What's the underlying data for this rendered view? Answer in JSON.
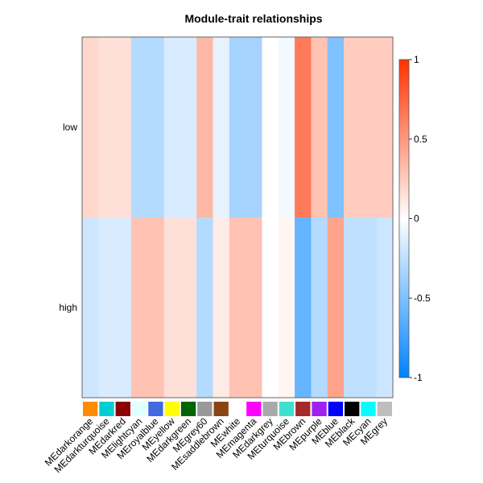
{
  "chart_data": {
    "type": "heatmap",
    "title": "Module-trait relationships",
    "rows": [
      "low",
      "high"
    ],
    "columns": [
      "MEdarkorange",
      "MEdarkturquoise",
      "MEdarkred",
      "MElightcyan",
      "MEroyalblue",
      "MEyellow",
      "MEdarkgreen",
      "MEgrey60",
      "MEsaddlebrown",
      "MEwhite",
      "MEmagenta",
      "MEdarkgrey",
      "MEturquoise",
      "MEbrown",
      "MEpurple",
      "MEblue",
      "MEblack",
      "MEcyan",
      "MEgrey"
    ],
    "module_colors": [
      "#FF8C00",
      "#00CED1",
      "#8B0000",
      "#E0FFFF",
      "#4169E1",
      "#FFFF00",
      "#006400",
      "#999999",
      "#8B4513",
      "#FFFFFF",
      "#FF00FF",
      "#A9A9A9",
      "#40E0D0",
      "#A52A2A",
      "#A020F0",
      "#0000FF",
      "#000000",
      "#00FFFF",
      "#BEBEBE"
    ],
    "values": [
      [
        0.2,
        0.15,
        0.15,
        -0.3,
        -0.3,
        -0.15,
        -0.15,
        0.35,
        -0.1,
        -0.35,
        -0.35,
        0.0,
        -0.05,
        0.65,
        0.3,
        -0.5,
        0.25,
        0.25,
        0.25
      ],
      [
        -0.2,
        -0.15,
        -0.15,
        0.3,
        0.3,
        0.15,
        0.15,
        -0.3,
        0.1,
        0.3,
        0.3,
        0.0,
        0.05,
        -0.6,
        -0.3,
        0.45,
        -0.25,
        -0.25,
        -0.2
      ]
    ],
    "color_scale": {
      "min": -1,
      "max": 1,
      "low_color": "#0082FF",
      "mid_color": "#FFFFFF",
      "high_color": "#FF3300"
    },
    "legend_ticks": [
      "1",
      "0.5",
      "0",
      "-0.5",
      "-1"
    ],
    "legend_tick_values": [
      1,
      0.5,
      0,
      -0.5,
      -1
    ]
  }
}
